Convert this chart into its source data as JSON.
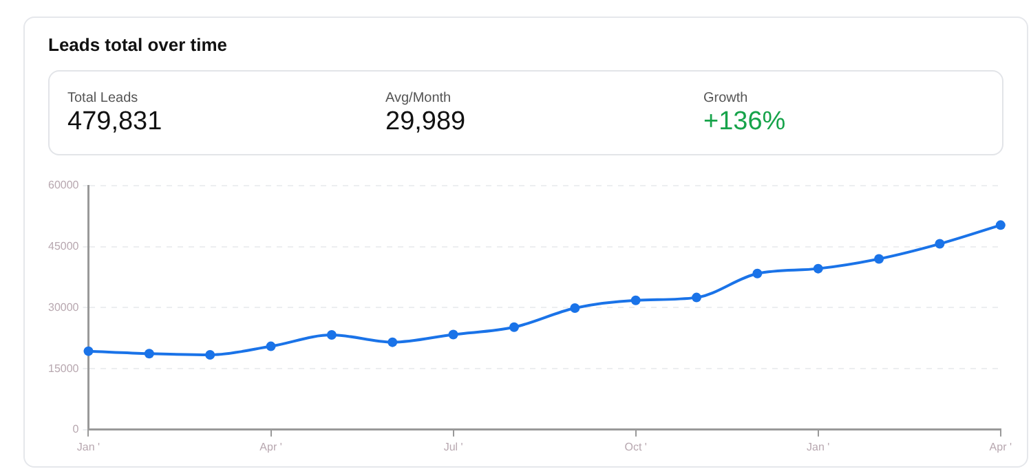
{
  "chart_data": [
    {
      "type": "other",
      "title": "Leads total over time",
      "annotations": [
        "Total Leads",
        "479,831",
        "Avg/Month",
        "29,989",
        "Growth",
        "+136%"
      ]
    },
    {
      "type": "line",
      "categories": [
        "Jan '",
        null,
        null,
        "Apr '",
        null,
        null,
        "Jul '",
        null,
        null,
        "Oct '",
        null,
        null,
        "Jan '",
        null,
        null,
        "Apr '"
      ],
      "series": [
        {
          "color": "#1a73e8",
          "values": [
            19300,
            18700,
            18400,
            20500,
            23300,
            21500,
            23400,
            25200,
            29900,
            31800,
            32500,
            38400,
            39600,
            42000,
            45700,
            50300
          ]
        }
      ],
      "ylim": [
        0,
        60000
      ],
      "yticks": [
        0,
        15000,
        30000,
        45000,
        60000
      ],
      "grid": "y",
      "legend": false,
      "marker": "circle",
      "line_style": "solid"
    }
  ]
}
